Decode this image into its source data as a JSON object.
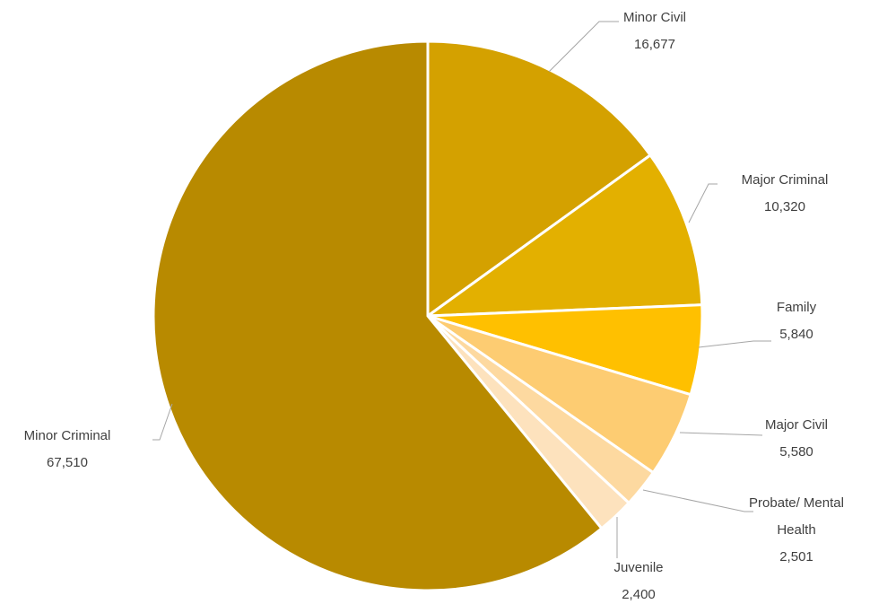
{
  "chart_data": {
    "type": "pie",
    "title": "",
    "start_angle_deg": 0,
    "direction": "clockwise",
    "slices": [
      {
        "name": "Minor Civil",
        "label_lines": [
          "Minor Civil",
          "16,677"
        ],
        "value": 16677,
        "color": "#d4a100"
      },
      {
        "name": "Major Criminal",
        "label_lines": [
          "Major Criminal",
          "10,320"
        ],
        "value": 10320,
        "color": "#e3b000"
      },
      {
        "name": "Family",
        "label_lines": [
          "Family",
          "5,840"
        ],
        "value": 5840,
        "color": "#ffc000"
      },
      {
        "name": "Major Civil",
        "label_lines": [
          "Major Civil",
          "5,580"
        ],
        "value": 5580,
        "color": "#fdcc72"
      },
      {
        "name": "Probate/ Mental Health",
        "label_lines": [
          "Probate/ Mental",
          "Health",
          "2,501"
        ],
        "value": 2501,
        "color": "#fdd9a0"
      },
      {
        "name": "Juvenile",
        "label_lines": [
          "Juvenile",
          "2,400"
        ],
        "value": 2400,
        "color": "#fde2bd"
      },
      {
        "name": "Minor Criminal",
        "label_lines": [
          "Minor Criminal",
          "67,510"
        ],
        "value": 67510,
        "color": "#b88a00"
      }
    ]
  }
}
